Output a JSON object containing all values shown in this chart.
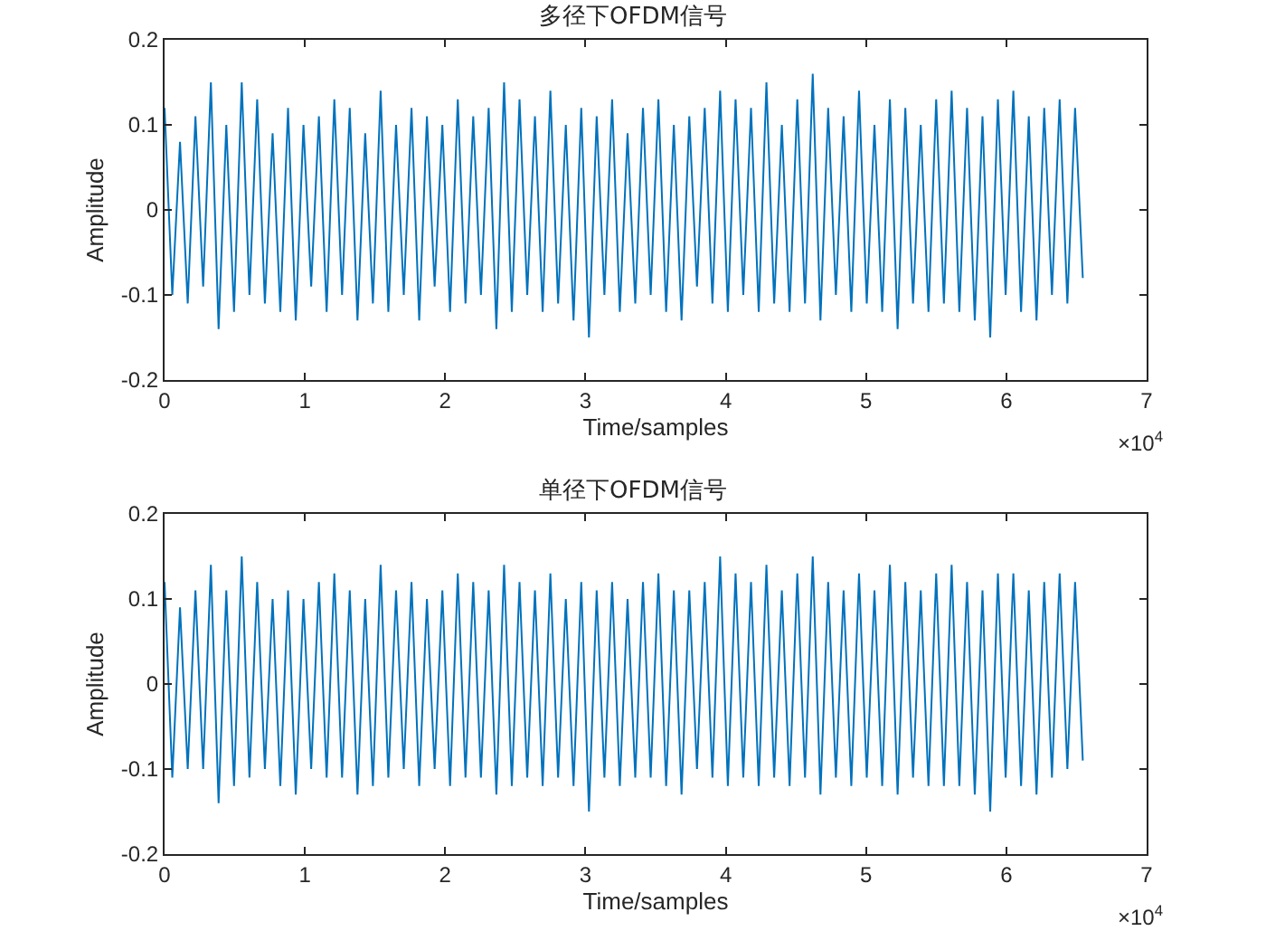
{
  "chart_data": [
    {
      "type": "line",
      "title": "多径下OFDM信号",
      "xlabel": "Time/samples",
      "ylabel": "Amplitude",
      "annotations": [
        "×10$^{4}$"
      ],
      "grid": false,
      "marker": "none",
      "line_style": "solid",
      "xlim": [
        0,
        7
      ],
      "xticks": [
        0,
        1,
        2,
        3,
        4,
        5,
        6,
        7
      ],
      "ylim": [
        -0.2,
        0.2
      ],
      "yticks": [
        -0.2,
        -0.1,
        0,
        0.1,
        0.2
      ],
      "x": [
        0,
        0.055,
        0.11,
        0.165,
        0.22,
        0.275,
        0.33,
        0.385,
        0.44,
        0.495,
        0.55,
        0.605,
        0.66,
        0.715,
        0.77,
        0.825,
        0.88,
        0.935,
        0.99,
        1.045,
        1.1,
        1.155,
        1.21,
        1.265,
        1.32,
        1.375,
        1.43,
        1.485,
        1.54,
        1.595,
        1.65,
        1.705,
        1.76,
        1.815,
        1.87,
        1.925,
        1.98,
        2.035,
        2.09,
        2.145,
        2.2,
        2.255,
        2.31,
        2.365,
        2.42,
        2.475,
        2.53,
        2.585,
        2.64,
        2.695,
        2.75,
        2.805,
        2.86,
        2.915,
        2.97,
        3.025,
        3.08,
        3.135,
        3.19,
        3.245,
        3.3,
        3.355,
        3.41,
        3.465,
        3.52,
        3.575,
        3.63,
        3.685,
        3.74,
        3.795,
        3.85,
        3.905,
        3.96,
        4.015,
        4.07,
        4.125,
        4.18,
        4.235,
        4.29,
        4.345,
        4.4,
        4.455,
        4.51,
        4.565,
        4.62,
        4.675,
        4.73,
        4.785,
        4.84,
        4.895,
        4.95,
        5.005,
        5.06,
        5.115,
        5.17,
        5.225,
        5.28,
        5.335,
        5.39,
        5.445,
        5.5,
        5.555,
        5.61,
        5.665,
        5.72,
        5.775,
        5.83,
        5.885,
        5.94,
        5.995,
        6.05,
        6.105,
        6.16,
        6.215,
        6.27,
        6.325,
        6.38,
        6.435,
        6.49,
        6.545
      ],
      "series": [
        {
          "color": "#0072bd",
          "values": [
            0.12,
            -0.1,
            0.08,
            -0.11,
            0.11,
            -0.09,
            0.15,
            -0.14,
            0.1,
            -0.12,
            0.15,
            -0.1,
            0.13,
            -0.11,
            0.09,
            -0.12,
            0.12,
            -0.13,
            0.1,
            -0.09,
            0.11,
            -0.12,
            0.13,
            -0.1,
            0.12,
            -0.13,
            0.09,
            -0.11,
            0.14,
            -0.12,
            0.1,
            -0.1,
            0.12,
            -0.13,
            0.11,
            -0.09,
            0.1,
            -0.12,
            0.13,
            -0.11,
            0.11,
            -0.1,
            0.12,
            -0.14,
            0.15,
            -0.12,
            0.13,
            -0.1,
            0.11,
            -0.12,
            0.14,
            -0.11,
            0.1,
            -0.13,
            0.12,
            -0.15,
            0.11,
            -0.1,
            0.13,
            -0.12,
            0.09,
            -0.11,
            0.12,
            -0.1,
            0.13,
            -0.12,
            0.1,
            -0.13,
            0.11,
            -0.09,
            0.12,
            -0.11,
            0.14,
            -0.12,
            0.13,
            -0.1,
            0.12,
            -0.12,
            0.15,
            -0.11,
            0.1,
            -0.12,
            0.13,
            -0.11,
            0.16,
            -0.13,
            0.12,
            -0.1,
            0.11,
            -0.12,
            0.14,
            -0.11,
            0.1,
            -0.12,
            0.13,
            -0.14,
            0.12,
            -0.11,
            0.1,
            -0.12,
            0.13,
            -0.11,
            0.14,
            -0.12,
            0.12,
            -0.13,
            0.11,
            -0.15,
            0.13,
            -0.1,
            0.14,
            -0.12,
            0.11,
            -0.13,
            0.12,
            -0.1,
            0.13,
            -0.11,
            0.12,
            -0.08
          ]
        }
      ]
    },
    {
      "type": "line",
      "title": "单径下OFDM信号",
      "xlabel": "Time/samples",
      "ylabel": "Amplitude",
      "annotations": [
        "×10$^{4}$"
      ],
      "grid": false,
      "marker": "none",
      "line_style": "solid",
      "xlim": [
        0,
        7
      ],
      "xticks": [
        0,
        1,
        2,
        3,
        4,
        5,
        6,
        7
      ],
      "ylim": [
        -0.2,
        0.2
      ],
      "yticks": [
        -0.2,
        -0.1,
        0,
        0.1,
        0.2
      ],
      "x": [
        0,
        0.055,
        0.11,
        0.165,
        0.22,
        0.275,
        0.33,
        0.385,
        0.44,
        0.495,
        0.55,
        0.605,
        0.66,
        0.715,
        0.77,
        0.825,
        0.88,
        0.935,
        0.99,
        1.045,
        1.1,
        1.155,
        1.21,
        1.265,
        1.32,
        1.375,
        1.43,
        1.485,
        1.54,
        1.595,
        1.65,
        1.705,
        1.76,
        1.815,
        1.87,
        1.925,
        1.98,
        2.035,
        2.09,
        2.145,
        2.2,
        2.255,
        2.31,
        2.365,
        2.42,
        2.475,
        2.53,
        2.585,
        2.64,
        2.695,
        2.75,
        2.805,
        2.86,
        2.915,
        2.97,
        3.025,
        3.08,
        3.135,
        3.19,
        3.245,
        3.3,
        3.355,
        3.41,
        3.465,
        3.52,
        3.575,
        3.63,
        3.685,
        3.74,
        3.795,
        3.85,
        3.905,
        3.96,
        4.015,
        4.07,
        4.125,
        4.18,
        4.235,
        4.29,
        4.345,
        4.4,
        4.455,
        4.51,
        4.565,
        4.62,
        4.675,
        4.73,
        4.785,
        4.84,
        4.895,
        4.95,
        5.005,
        5.06,
        5.115,
        5.17,
        5.225,
        5.28,
        5.335,
        5.39,
        5.445,
        5.5,
        5.555,
        5.61,
        5.665,
        5.72,
        5.775,
        5.83,
        5.885,
        5.94,
        5.995,
        6.05,
        6.105,
        6.16,
        6.215,
        6.27,
        6.325,
        6.38,
        6.435,
        6.49,
        6.545
      ],
      "series": [
        {
          "color": "#0072bd",
          "values": [
            0.12,
            -0.11,
            0.09,
            -0.1,
            0.11,
            -0.1,
            0.14,
            -0.14,
            0.11,
            -0.12,
            0.15,
            -0.11,
            0.12,
            -0.1,
            0.1,
            -0.12,
            0.11,
            -0.13,
            0.1,
            -0.1,
            0.12,
            -0.11,
            0.13,
            -0.11,
            0.11,
            -0.13,
            0.1,
            -0.12,
            0.14,
            -0.11,
            0.11,
            -0.1,
            0.12,
            -0.12,
            0.1,
            -0.1,
            0.11,
            -0.12,
            0.13,
            -0.11,
            0.12,
            -0.11,
            0.11,
            -0.13,
            0.14,
            -0.12,
            0.12,
            -0.11,
            0.11,
            -0.12,
            0.13,
            -0.11,
            0.1,
            -0.12,
            0.12,
            -0.15,
            0.11,
            -0.11,
            0.12,
            -0.12,
            0.1,
            -0.11,
            0.12,
            -0.11,
            0.13,
            -0.12,
            0.11,
            -0.13,
            0.11,
            -0.1,
            0.12,
            -0.11,
            0.15,
            -0.12,
            0.13,
            -0.11,
            0.12,
            -0.12,
            0.14,
            -0.11,
            0.11,
            -0.12,
            0.13,
            -0.11,
            0.15,
            -0.13,
            0.12,
            -0.11,
            0.11,
            -0.12,
            0.13,
            -0.11,
            0.11,
            -0.12,
            0.14,
            -0.13,
            0.12,
            -0.11,
            0.11,
            -0.12,
            0.13,
            -0.12,
            0.14,
            -0.12,
            0.12,
            -0.13,
            0.11,
            -0.15,
            0.13,
            -0.11,
            0.13,
            -0.12,
            0.11,
            -0.13,
            0.12,
            -0.11,
            0.13,
            -0.1,
            0.12,
            -0.09
          ]
        }
      ]
    }
  ]
}
